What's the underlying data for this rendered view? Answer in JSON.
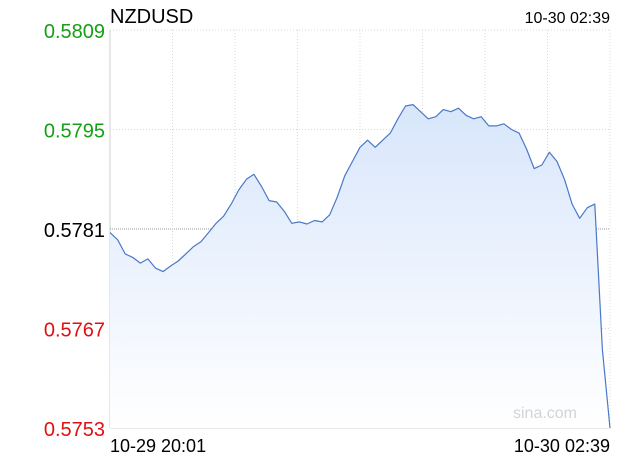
{
  "header": {
    "symbol": "NZDUSD",
    "timestamp": "10-30 02:39"
  },
  "watermark": "sina.com",
  "colors": {
    "line": "#4a78c8",
    "fill_top": "#d8e6fb",
    "fill_bottom": "#ffffff",
    "grid": "#d8d8d8",
    "up": "#14a014",
    "down": "#e01010",
    "neutral": "#000000"
  },
  "chart_data": {
    "type": "area",
    "title": "NZDUSD",
    "reference_price": 0.5781,
    "y_range": [
      0.5753,
      0.5809
    ],
    "y_ticks": [
      {
        "label": "0.5809",
        "value": 0.5809,
        "status": "up"
      },
      {
        "label": "0.5795",
        "value": 0.5795,
        "status": "up"
      },
      {
        "label": "0.5781",
        "value": 0.5781,
        "status": "neutral"
      },
      {
        "label": "0.5767",
        "value": 0.5767,
        "status": "down"
      },
      {
        "label": "0.5753",
        "value": 0.5753,
        "status": "down"
      }
    ],
    "x_range": [
      "10-29 20:01",
      "10-30 02:39"
    ],
    "x_labels": [
      "10-29 20:01",
      "10-30 02:39"
    ],
    "x_gridlines": 8,
    "grid": true,
    "series": [
      {
        "values": [
          0.57805,
          0.57795,
          0.57775,
          0.5777,
          0.57762,
          0.57768,
          0.57755,
          0.5775,
          0.57758,
          0.57765,
          0.57775,
          0.57785,
          0.57792,
          0.57805,
          0.57818,
          0.57828,
          0.57845,
          0.57865,
          0.5788,
          0.57887,
          0.5787,
          0.5785,
          0.57848,
          0.57835,
          0.57818,
          0.5782,
          0.57817,
          0.57822,
          0.5782,
          0.5783,
          0.57855,
          0.57885,
          0.57905,
          0.57925,
          0.57935,
          0.57925,
          0.57935,
          0.57945,
          0.57965,
          0.57983,
          0.57985,
          0.57975,
          0.57965,
          0.57968,
          0.57978,
          0.57975,
          0.5798,
          0.5797,
          0.57965,
          0.57968,
          0.57955,
          0.57955,
          0.57958,
          0.5795,
          0.57945,
          0.57922,
          0.57895,
          0.579,
          0.57918,
          0.57905,
          0.5788,
          0.57845,
          0.57825,
          0.5784,
          0.57845,
          0.5764,
          0.5753
        ]
      }
    ]
  }
}
